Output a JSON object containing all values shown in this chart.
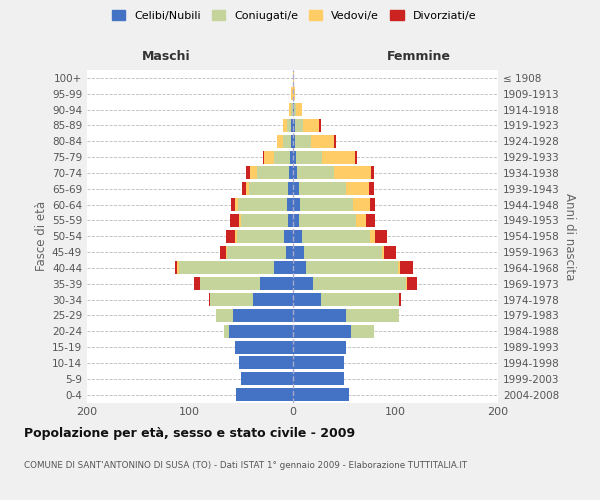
{
  "age_groups": [
    "0-4",
    "5-9",
    "10-14",
    "15-19",
    "20-24",
    "25-29",
    "30-34",
    "35-39",
    "40-44",
    "45-49",
    "50-54",
    "55-59",
    "60-64",
    "65-69",
    "70-74",
    "75-79",
    "80-84",
    "85-89",
    "90-94",
    "95-99",
    "100+"
  ],
  "birth_years": [
    "2004-2008",
    "1999-2003",
    "1994-1998",
    "1989-1993",
    "1984-1988",
    "1979-1983",
    "1974-1978",
    "1969-1973",
    "1964-1968",
    "1959-1963",
    "1954-1958",
    "1949-1953",
    "1944-1948",
    "1939-1943",
    "1934-1938",
    "1929-1933",
    "1924-1928",
    "1919-1923",
    "1914-1918",
    "1909-1913",
    "≤ 1908"
  ],
  "colors": {
    "celibi": "#4472C4",
    "coniugati": "#C5D49A",
    "vedovi": "#FFCC66",
    "divorziati": "#CC2222"
  },
  "males": {
    "celibi": [
      55,
      50,
      52,
      56,
      62,
      58,
      38,
      32,
      18,
      6,
      8,
      4,
      5,
      4,
      3,
      2,
      1,
      1,
      0,
      0,
      0
    ],
    "coniugati": [
      0,
      0,
      0,
      0,
      5,
      16,
      42,
      58,
      92,
      58,
      46,
      46,
      48,
      38,
      32,
      16,
      8,
      4,
      1,
      0,
      0
    ],
    "vedovi": [
      0,
      0,
      0,
      0,
      0,
      0,
      0,
      0,
      2,
      1,
      2,
      2,
      3,
      3,
      6,
      10,
      6,
      4,
      2,
      1,
      0
    ],
    "divorziati": [
      0,
      0,
      0,
      0,
      0,
      0,
      1,
      6,
      2,
      6,
      9,
      9,
      4,
      4,
      4,
      1,
      0,
      0,
      0,
      0,
      0
    ]
  },
  "females": {
    "celibi": [
      55,
      50,
      50,
      52,
      57,
      52,
      28,
      20,
      13,
      11,
      9,
      6,
      7,
      6,
      4,
      3,
      2,
      2,
      1,
      0,
      0
    ],
    "coniugati": [
      0,
      0,
      0,
      0,
      22,
      52,
      76,
      90,
      90,
      76,
      66,
      56,
      52,
      46,
      36,
      26,
      16,
      8,
      2,
      0,
      0
    ],
    "vedovi": [
      0,
      0,
      0,
      0,
      0,
      0,
      0,
      1,
      2,
      2,
      5,
      10,
      16,
      22,
      36,
      32,
      22,
      16,
      6,
      2,
      1
    ],
    "divorziati": [
      0,
      0,
      0,
      0,
      0,
      0,
      2,
      10,
      12,
      12,
      12,
      8,
      5,
      5,
      3,
      2,
      2,
      2,
      0,
      0,
      0
    ]
  },
  "xlim": 200,
  "title": "Popolazione per età, sesso e stato civile - 2009",
  "subtitle": "COMUNE DI SANT'ANTONINO DI SUSA (TO) - Dati ISTAT 1° gennaio 2009 - Elaborazione TUTTITALIA.IT",
  "ylabel_left": "Fasce di età",
  "ylabel_right": "Anni di nascita",
  "xlabel_left": "Maschi",
  "xlabel_right": "Femmine",
  "legend_labels": [
    "Celibi/Nubili",
    "Coniugati/e",
    "Vedovi/e",
    "Divorziati/e"
  ],
  "bg_color": "#F0F0F0",
  "plot_bg": "#FFFFFF",
  "grid_color": "#BBBBBB"
}
